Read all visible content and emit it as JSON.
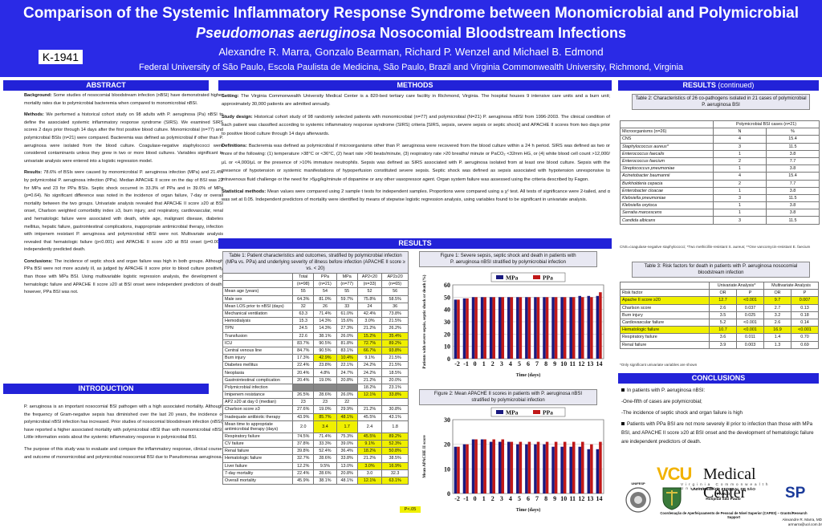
{
  "header": {
    "title_line1": "Comparison of the Systemic Inflammatory Response Syndrome between Monomicrobial and Polymicrobial",
    "title_line2_italic": "Pseudomonas aeruginosa",
    "title_line2_rest": " Nosocomial Bloodstream Infections",
    "authors": "Alexandre R. Marra, Gonzalo Bearman, Richard P. Wenzel and Michael B. Edmond",
    "affiliation": "Federal University of São Paulo, Escola Paulista de Medicina, São Paulo, Brazil and Virginia Commonwealth University, Richmond, Virginia",
    "poster_id": "K-1941",
    "bg_color": "#2a2ae6"
  },
  "abstract": {
    "heading": "ABSTRACT",
    "background_label": "Background:",
    "background": "Some studies of nosocomial bloodstream infection (nBSI) have demonstrated higher mortality rates due to polymicrobial bacteremia when compared to monomicrobial nBSI.",
    "methods_label": "Methods:",
    "methods": "We performed a historical cohort study on 98 adults with P. aeruginosa (Pa) nBSI to define the associated systemic inflammatory response syndrome (SIRS). We examined SIRS scores 2 days prior through 14 days after the first positive blood culture. Monomicrobial (n=77) and polymicrobial BSIs (n=21) were compared. Bacteremia was defined as polymicrobial if other than P. aeruginosa were isolated from the blood culture. Coagulase-negative staphylococci were considered contaminants unless they grew in two or more blood cultures. Variables significant in univariate analysis were entered into a logistic regression model.",
    "results_label": "Results:",
    "results": "78.6% of BSIs were caused by monomicrobial P. aeruginosa infection (MPa) and 21.4% by polymicrobial P. aeruginosa infection (PPa). Median APACHE II score on the day of BSI was 22 for MPa and 23 for PPa BSIs. Septic shock occurred in 33.3% of PPa and in 39.0% of MPa (p=0.64). No significant difference was noted in the incidence of organ failure, 7-day or overall mortality between the two groups. Univariate analysis revealed that APACHE II score ≥20 at BSI onset, Charlson weighted comorbidity index ≥3, burn injury, and respiratory, cardiovascular, renal and hematologic failure were associated with death, while age, malignant disease, diabetes mellitus, hepatic failure, gastrointestinal complications, inappropriate antimicrobial therapy, infection with imipenem resistant P. aeruginosa and polymicrobial nBSI were not. Multivariate analysis revealed that hematologic failure (p<0.001) and APACHE II score ≥20 at BSI onset (p=0.007) independently predicted death.",
    "conclusions_label": "Conclusions:",
    "conclusions": "The incidence of septic shock and organ failure was high in both groups. Although PPa BSI were not more acutely ill, as judged by APACHE II score prior to blood culture positivity than those with MPa BSI. Using multivariable logistic regression analysis, the development of hematologic failure and APACHE II score ≥20 at BSI onset were independent predictors of death; however, PPa BSI was not."
  },
  "introduction": {
    "heading": "INTRODUCTION",
    "p1": "P. aeruginosa is an important nosocomial BSI pathogen with a high associated mortality. Although the frequency of Gram-negative sepsis has diminished over the last 20 years, the incidence of polymicrobial nBSI infection has increased. Prior studies of nosocomial bloodstream infection (nBSI) have reported a higher associated mortality with polymicrobial nBSI than with monomicrobial nBSI. Little information exists about the systemic inflammatory response in polymicrobial BSI.",
    "p2": "The purpose of this study was to evaluate and compare the inflammatory response, clinical course, and outcome of monomicrobial and polymicrobial nosocomial BSI due to Pseudomonas aeruginosa."
  },
  "methods": {
    "heading": "METHODS",
    "setting_label": "Setting:",
    "setting": "The Virginia Commonwealth University Medical Center is a 820-bed tertiary care facility in Richmond, Virginia. The hospital houses 9 intensive care units and a burn unit; approximately 30,000 patients are admitted annually.",
    "design_label": "Study design:",
    "design": "Historical cohort study of 98 randomly selected patients with monomicrobial (n=77) and polymicrobial (N=21) P. aeruginosa nBSI from 1996-2003. The clinical condition of each patient was classified according to systemic inflammatory response syndrome (SIRS) criteria [SIRS, sepsis, severe sepsis or septic shock] and APACHE II scores from two days prior to positive blood culture through 14 days afterwards.",
    "defs_label": "Definitions:",
    "defs": "Bacteremia was defined as polymicrobial if microorganisms other than P. aeruginosa were recovered from the blood culture within a 24 h period. SIRS was defined as two or more of the following: (1) temperature >38°C or <36°C, (2) heart rate >90 beats/minute, (3) respiratory rate >20 breaths/ minute or PaCO₂ <32mm HG, or (4) white blood cell count >12,000/μL or <4,000/μL or the presence of >10% immature neutrophils. Sepsis was defined as SIRS associated with P. aeruginosa isolated from at least one blood culture. Sepsis with the presence of hypotension or systemic manifestations of hypoperfusion constituted severe sepsis. Septic shock was defined as sepsis associated with hypotension unresponsive to intravenous fluid challenge or the need for >5μg/kg/minute of dopamine or any other vasopressor agent. Organ system failure was assessed using the criteria described by Fagon.",
    "stats_label": "Statistical methods:",
    "stats": "Mean values were compared using 2 sample t tests for independent samples. Proportions were compared using a χ² test. All tests of significance were 2-tailed, and α was set at 0.05. Independent predictors of mortality were identified by means of stepwise logistic regression analysis, using variables found to be significant in univariate analysis."
  },
  "results": {
    "heading": "RESULTS",
    "heading_cont_main": "RESULTS",
    "heading_cont_sub": "(continued)",
    "table1": {
      "caption": "Table 1: Patient characteristics and outcomes, stratified by polymicrobial infection (MPa vs. PPa) and underlying severity of illness before infection (APACHE II score ≥ vs. < 20)",
      "headers": [
        "",
        "Total",
        "PPa",
        "MPa",
        "AP2<20",
        "AP2≥20"
      ],
      "subheaders": [
        "",
        "(n=98)",
        "(n=21)",
        "(n=77)",
        "(n=33)",
        "(n=65)"
      ],
      "rows": [
        [
          "Mean age (years)",
          "55",
          "54",
          "55",
          "52",
          "56"
        ],
        [
          "Male sex",
          "64.3%",
          "81.0%",
          "59.7%",
          "75.8%",
          "58.5%"
        ],
        [
          "Mean LOS prior to nBSI (days)",
          "32",
          "26",
          "33",
          "24",
          "36"
        ],
        [
          "Mechanical ventilation",
          "63.3",
          "71.4%",
          "61.0%",
          "42.4%",
          "73.8%"
        ],
        [
          "Hemodialysis",
          "15.3",
          "14.3%",
          "15.6%",
          "3.0%",
          "21.5%"
        ],
        [
          "TPN",
          "24.5",
          "14.3%",
          "27.3%",
          "21.2%",
          "26.2%"
        ],
        [
          "Transfusion",
          "22.6",
          "38.1%",
          "26.0%",
          "15.2%",
          "35.4%"
        ],
        [
          "ICU",
          "83.7%",
          "90.5%",
          "81.8%",
          "72.7%",
          "89.2%"
        ],
        [
          "Central venous line",
          "84.7%",
          "90.5%",
          "83.1%",
          "66.7%",
          "93.8%"
        ],
        [
          "Burn injury",
          "17.3%",
          "42.9%",
          "10.4%",
          "9.1%",
          "21.5%"
        ],
        [
          "Diabetes mellitus",
          "22.4%",
          "23.8%",
          "22.1%",
          "24.2%",
          "21.5%"
        ],
        [
          "Neoplasia",
          "20.4%",
          "4.8%",
          "24.7%",
          "24.2%",
          "18.5%"
        ],
        [
          "Gastrointestinal complication",
          "20.4%",
          "19.0%",
          "20.8%",
          "21.2%",
          "20.0%"
        ],
        [
          "Polymicrobial infection",
          "",
          "",
          "",
          "18.2%",
          "23.1%"
        ],
        [
          "Imipenem resistance",
          "26.5%",
          "28.6%",
          "26.0%",
          "12.1%",
          "33.8%"
        ],
        [
          "AP2 ≥20 at day 0 (median)",
          "23",
          "23",
          "22",
          "",
          ""
        ],
        [
          "Charlson score ≥3",
          "27.6%",
          "19.0%",
          "29.9%",
          "21.2%",
          "30.8%"
        ],
        [
          "Inadequate antibiotic therapy",
          "43.9%",
          "85.7%",
          "48.1%",
          "45.5%",
          "43.1%"
        ],
        [
          "Mean time to appropriate antimicrobial therapy (days)",
          "2.0",
          "3.4",
          "1.7",
          "2.4",
          "1.8"
        ],
        [
          "Respiratory failure",
          "74.5%",
          "71.4%",
          "75.3%",
          "45.5%",
          "89.2%"
        ],
        [
          "CV failure",
          "37.8%",
          "33.3%",
          "39.0%",
          "9.1%",
          "52.3%"
        ],
        [
          "Renal failure",
          "39.8%",
          "52.4%",
          "36.4%",
          "18.2%",
          "50.8%"
        ],
        [
          "Hematologic failure",
          "32.7%",
          "28.6%",
          "33.8%",
          "21.2%",
          "38.5%"
        ],
        [
          "Liver failure",
          "12.2%",
          "9.5%",
          "13.0%",
          "3.0%",
          "16.9%"
        ],
        [
          "7-day mortality",
          "22.4%",
          "28.6%",
          "20.8%",
          "3.0",
          "32.3"
        ],
        [
          "Overall mortality",
          "45.9%",
          "38.1%",
          "48.1%",
          "12.1%",
          "63.1%"
        ]
      ],
      "p_note": "P<.05"
    },
    "table2": {
      "caption": "Table 2: Characteristics of 26 co-pathogens isolated in 21 cases of polymicrobial P. aeruginosa BSI",
      "group_header": "Polymicrobial BSI cases (n=21)",
      "col_headers": [
        "Microorganisms (n=26)",
        "N",
        "%"
      ],
      "rows": [
        [
          "CNS",
          "4",
          "15.4"
        ],
        [
          "Staphylococcus aureus*",
          "3",
          "11.5"
        ],
        [
          "Enterococcus faecalis",
          "1",
          "3.8"
        ],
        [
          "Enterococcus faecium",
          "2",
          "7.7"
        ],
        [
          "Streptococcus pneumoniae",
          "1",
          "3.8"
        ],
        [
          "Acinetobacter baumannii",
          "4",
          "15.4"
        ],
        [
          "Burkholderia cepacia",
          "2",
          "7.7"
        ],
        [
          "Enterobacter cloacae",
          "1",
          "3.8"
        ],
        [
          "Klebsiella pneumoniae",
          "3",
          "11.5"
        ],
        [
          "Klebsiella oxytoca",
          "1",
          "3.8"
        ],
        [
          "Serratia marcescens",
          "1",
          "3.8"
        ],
        [
          "Candida albicans",
          "3",
          "11.5"
        ]
      ],
      "footnote": "CNS=coagulase-negative staphylococci; *Two methicillin-resistant S. aureus; **One vancomycin-resistant E. faecium"
    },
    "table3": {
      "caption": "Table 3: Risk factors for death in patients with P. aeruginosa nosocomial bloodstream infection",
      "group_headers": [
        "Univariate Analysis*",
        "Multivariate Analysis"
      ],
      "col_headers": [
        "Risk factor",
        "OR",
        "P",
        "OR",
        "P"
      ],
      "rows": [
        [
          "Apache II score ≥20",
          "12.7",
          "<0.001",
          "9.7",
          "0.007"
        ],
        [
          "Charlson score",
          "2.6",
          "0.037",
          "2.7",
          "0.13"
        ],
        [
          "Burn injury",
          "3.5",
          "0.025",
          "3.2",
          "0.18"
        ],
        [
          "Cardiovascular failure",
          "5.2",
          "<0.001",
          "2.6",
          "0.14"
        ],
        [
          "Hematologic failure",
          "10.7",
          "<0.001",
          "16.9",
          "<0.001"
        ],
        [
          "Respiratory failure",
          "3.6",
          "0.011",
          "1.4",
          "0.70"
        ],
        [
          "Renal failure",
          "3.9",
          "0.003",
          "1.3",
          "0.69"
        ]
      ],
      "footnote": "*Only significant univariate variables are shown"
    },
    "figure1_caption_a": "Figure 1: Severe sepsis, septic shock and death in patients with",
    "figure1_caption_b": "P. aeruginosa nBSI stratified by polymicrobial infection",
    "figure2_caption_a": "Figure 2: Mean APACHE II scores in patients with P. aeruginosa nBSI",
    "figure2_caption_b": "stratified by polymicrobial infection"
  },
  "conclusions": {
    "heading": "CONCLUSIONS",
    "intro": "In patients with P. aeruginosa nBSI:",
    "l1": "-One-fifth of cases are polymicrobial;",
    "l2": "-The incidence of septic shock and organ failure is high",
    "l3": "Patients with PPa BSI are not more severely ill prior to infection than those with MPa BSI, and APACHE II score ≥20 at BSI onset and the development of hematologic failure are independent predictors of death."
  },
  "logos": {
    "vcu_text": "VCU",
    "medical_center": "Medical Center",
    "vcu_sub": "Virginia Commonwealth University",
    "unifesp": "UNIFESP",
    "federal": "UNIVERSIDADE FEDERAL DE SÃO PAULO",
    "hospital": "Hospital São Paulo",
    "sp": "SP",
    "capes": "Coordenação de Aperfeiçoamento de Pessoal de Nível Superior (CAPES) – Grants/Research Support",
    "contact1": "Alexandre R. Marra, MD",
    "contact2": "armarra@uol.com.br"
  },
  "chart_data": [
    {
      "type": "bar",
      "title": "Figure 1: Severe sepsis, septic shock and death in patients with P. aeruginosa nBSI stratified by polymicrobial infection",
      "xlabel": "Time (days)",
      "ylabel": "Patients with severe sepsis, septic shock or death (%)",
      "ylim": [
        0,
        60
      ],
      "yticks": [
        0,
        10,
        20,
        30,
        40,
        50,
        60
      ],
      "categories": [
        "-2",
        "-1",
        "0",
        "1",
        "2",
        "3",
        "4",
        "5",
        "6",
        "7",
        "8",
        "9",
        "10",
        "11",
        "12",
        "13",
        "14"
      ],
      "series": [
        {
          "name": "MPa",
          "color": "#1a1a80",
          "values": [
            48,
            49,
            50,
            50,
            50,
            50,
            50,
            50,
            50,
            50,
            50,
            50,
            50,
            50,
            51,
            51,
            51
          ]
        },
        {
          "name": "PPa",
          "color": "#c01818",
          "values": [
            48,
            49,
            50,
            50,
            50,
            50,
            50,
            50,
            50,
            50,
            50,
            50,
            50,
            50,
            50,
            50,
            54
          ]
        }
      ],
      "legend": "top"
    },
    {
      "type": "bar",
      "title": "Figure 2: Mean APACHE II scores in patients with P. aeruginosa nBSI stratified by polymicrobial infection",
      "xlabel": "Time (days)",
      "ylabel": "Mean APACHE II score",
      "ylim": [
        0,
        30
      ],
      "yticks": [
        0,
        10,
        20,
        30
      ],
      "categories": [
        "-2",
        "-1",
        "0",
        "1",
        "2",
        "3",
        "4",
        "5",
        "6",
        "7",
        "8",
        "9",
        "10",
        "11",
        "12",
        "13",
        "14"
      ],
      "series": [
        {
          "name": "MPa",
          "color": "#1a1a80",
          "values": [
            19,
            20,
            22,
            22,
            21,
            21,
            21,
            20,
            20,
            20,
            20,
            19,
            19,
            19,
            19,
            18,
            18
          ]
        },
        {
          "name": "PPa",
          "color": "#c01818",
          "values": [
            19,
            20,
            22,
            22,
            22,
            22,
            21,
            21,
            21,
            21,
            21,
            21,
            21,
            21,
            21,
            20,
            21
          ]
        }
      ],
      "legend": "top"
    }
  ]
}
